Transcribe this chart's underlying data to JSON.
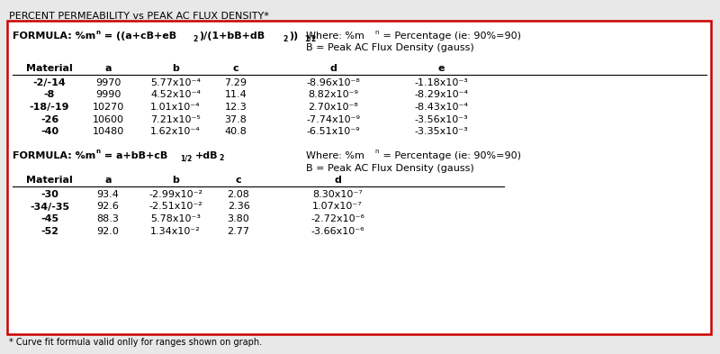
{
  "title": "PERCENT PERMEABILITY vs PEAK AC FLUX DENSITY*",
  "footnote": "* Curve fit formula valid onlly for ranges shown on graph.",
  "border_color": "#cc0000",
  "bg_color": "#ffffff",
  "outer_bg": "#e8e8e8",
  "formula1_parts": {
    "prefix": "FORMULA: %m",
    "sub": "n",
    "suffix": " = ((a+cB+eB",
    "sup1": "2",
    "mid": ")/(1+bB+dB",
    "sup2": "2",
    "end": "))",
    "sup3": "1/2"
  },
  "where1_prefix": "Where: %m",
  "where1_sub": "n",
  "where1_suffix": " = Percentage (ie: 90%=90)",
  "where2": "B = Peak AC Flux Density (gauss)",
  "formula2_parts": {
    "prefix": "FORMULA: %m",
    "sub": "n",
    "suffix": " = a+bB+cB",
    "sup1": "1/2",
    "mid": "+dB",
    "sup2": "2"
  },
  "table1_col_headers": [
    "Material",
    "a",
    "b",
    "c",
    "d",
    "e"
  ],
  "table1_rows": [
    [
      "-2/-14",
      "9970",
      "5.77x10⁻⁴",
      "7.29",
      "-8.96x10⁻⁸",
      "-1.18x10⁻³"
    ],
    [
      "-8",
      "9990",
      "4.52x10⁻⁴",
      "11.4",
      "8.82x10⁻⁹",
      "-8.29x10⁻⁴"
    ],
    [
      "-18/-19",
      "10270",
      "1.01x10⁻⁴",
      "12.3",
      "2.70x10⁻⁸",
      "-8.43x10⁻⁴"
    ],
    [
      "-26",
      "10600",
      "7.21x10⁻⁵",
      "37.8",
      "-7.74x10⁻⁹",
      "-3.56x10⁻³"
    ],
    [
      "-40",
      "10480",
      "1.62x10⁻⁴",
      "40.8",
      "-6.51x10⁻⁹",
      "-3.35x10⁻³"
    ]
  ],
  "table2_col_headers": [
    "Material",
    "a",
    "b",
    "c",
    "d"
  ],
  "table2_rows": [
    [
      "-30",
      "93.4",
      "-2.99x10⁻²",
      "2.08",
      "8.30x10⁻⁷"
    ],
    [
      "-34/-35",
      "92.6",
      "-2.51x10⁻²",
      "2.36",
      "1.07x10⁻⁷"
    ],
    [
      "-45",
      "88.3",
      "5.78x10⁻³",
      "3.80",
      "-2.72x10⁻⁶"
    ],
    [
      "-52",
      "92.0",
      "1.34x10⁻²",
      "2.77",
      "-3.66x10⁻⁶"
    ]
  ]
}
